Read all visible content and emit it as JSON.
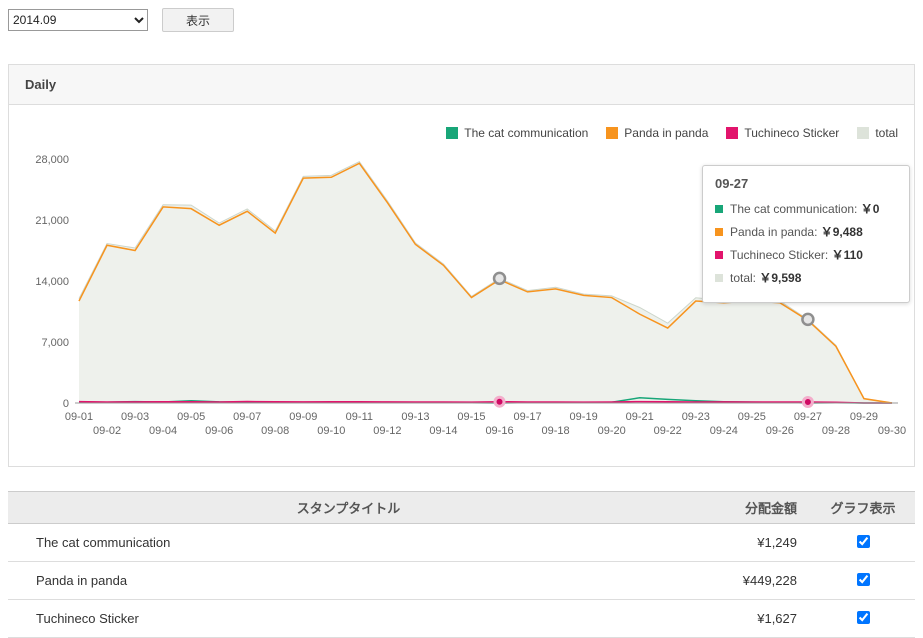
{
  "controls": {
    "period_select": {
      "value": "2014.09"
    },
    "show_button": "表示"
  },
  "panel": {
    "title": "Daily"
  },
  "chart_data": {
    "type": "area",
    "x": [
      "09-01",
      "09-02",
      "09-03",
      "09-04",
      "09-05",
      "09-06",
      "09-07",
      "09-08",
      "09-09",
      "09-10",
      "09-11",
      "09-12",
      "09-13",
      "09-14",
      "09-15",
      "09-16",
      "09-17",
      "09-18",
      "09-19",
      "09-20",
      "09-21",
      "09-22",
      "09-23",
      "09-24",
      "09-25",
      "09-26",
      "09-27",
      "09-28",
      "09-29",
      "09-30"
    ],
    "ylim": [
      0,
      28000
    ],
    "yticks": [
      0,
      7000,
      14000,
      21000,
      28000
    ],
    "ytick_labels": [
      "0",
      "7,000",
      "14,000",
      "21,000",
      "28,000"
    ],
    "legend_position": "top-right",
    "grid": false,
    "legend": [
      {
        "label": "The cat communication",
        "color": "#18a678"
      },
      {
        "label": "Panda in panda",
        "color": "#f7941e"
      },
      {
        "label": "Tuchineco Sticker",
        "color": "#e2146c"
      },
      {
        "label": "total",
        "color": "#dde3da"
      }
    ],
    "series": [
      {
        "name": "total",
        "color": "#cdd6cb",
        "fill": "#eef1ec",
        "area": true,
        "values": [
          11980,
          18300,
          17790,
          22750,
          22710,
          20650,
          22270,
          19730,
          26010,
          26120,
          27700,
          23210,
          18370,
          15950,
          12230,
          14300,
          12900,
          13280,
          12500,
          12290,
          10960,
          9160,
          12080,
          11780,
          11910,
          11700,
          9598,
          6620,
          500,
          0
        ]
      },
      {
        "name": "The cat communication",
        "color": "#18a678",
        "area": false,
        "values": [
          120,
          90,
          160,
          110,
          260,
          130,
          100,
          90,
          80,
          70,
          60,
          80,
          50,
          40,
          30,
          0,
          40,
          60,
          50,
          80,
          600,
          420,
          260,
          150,
          100,
          80,
          0,
          30,
          0,
          0
        ]
      },
      {
        "name": "Tuchineco Sticker",
        "color": "#e2146c",
        "area": false,
        "values": [
          160,
          110,
          130,
          140,
          150,
          120,
          170,
          140,
          130,
          150,
          140,
          130,
          120,
          110,
          100,
          150,
          110,
          120,
          100,
          110,
          160,
          140,
          120,
          130,
          110,
          120,
          110,
          90,
          0,
          0
        ]
      },
      {
        "name": "Panda in panda",
        "color": "#f7941e",
        "area": false,
        "values": [
          11700,
          18100,
          17500,
          22500,
          22300,
          20400,
          22000,
          19500,
          25800,
          25900,
          27500,
          23000,
          18200,
          15800,
          12100,
          14150,
          12750,
          13100,
          12350,
          12100,
          10200,
          8600,
          11700,
          11500,
          11700,
          11500,
          9488,
          6500,
          500,
          0
        ]
      }
    ],
    "markers": [
      {
        "x": "09-16",
        "value": 14300,
        "kind": "gray"
      },
      {
        "x": "09-27",
        "value": 9598,
        "kind": "gray"
      },
      {
        "x": "09-16",
        "value": 150,
        "kind": "pink"
      },
      {
        "x": "09-27",
        "value": 110,
        "kind": "pink"
      }
    ]
  },
  "tooltip": {
    "date": "09-27",
    "items": [
      {
        "label": "The cat communication",
        "value": "￥0",
        "color": "#18a678"
      },
      {
        "label": "Panda in panda",
        "value": "￥9,488",
        "color": "#f7941e"
      },
      {
        "label": "Tuchineco Sticker",
        "value": "￥110",
        "color": "#e2146c"
      },
      {
        "label": "total",
        "value": "￥9,598",
        "color": "#dde3da"
      }
    ]
  },
  "table": {
    "headers": [
      "スタンプタイトル",
      "分配金額",
      "グラフ表示"
    ],
    "rows": [
      {
        "title": "The cat communication",
        "amount": "¥1,249",
        "graph": true
      },
      {
        "title": "Panda in panda",
        "amount": "¥449,228",
        "graph": true
      },
      {
        "title": "Tuchineco Sticker",
        "amount": "¥1,627",
        "graph": true
      }
    ]
  }
}
